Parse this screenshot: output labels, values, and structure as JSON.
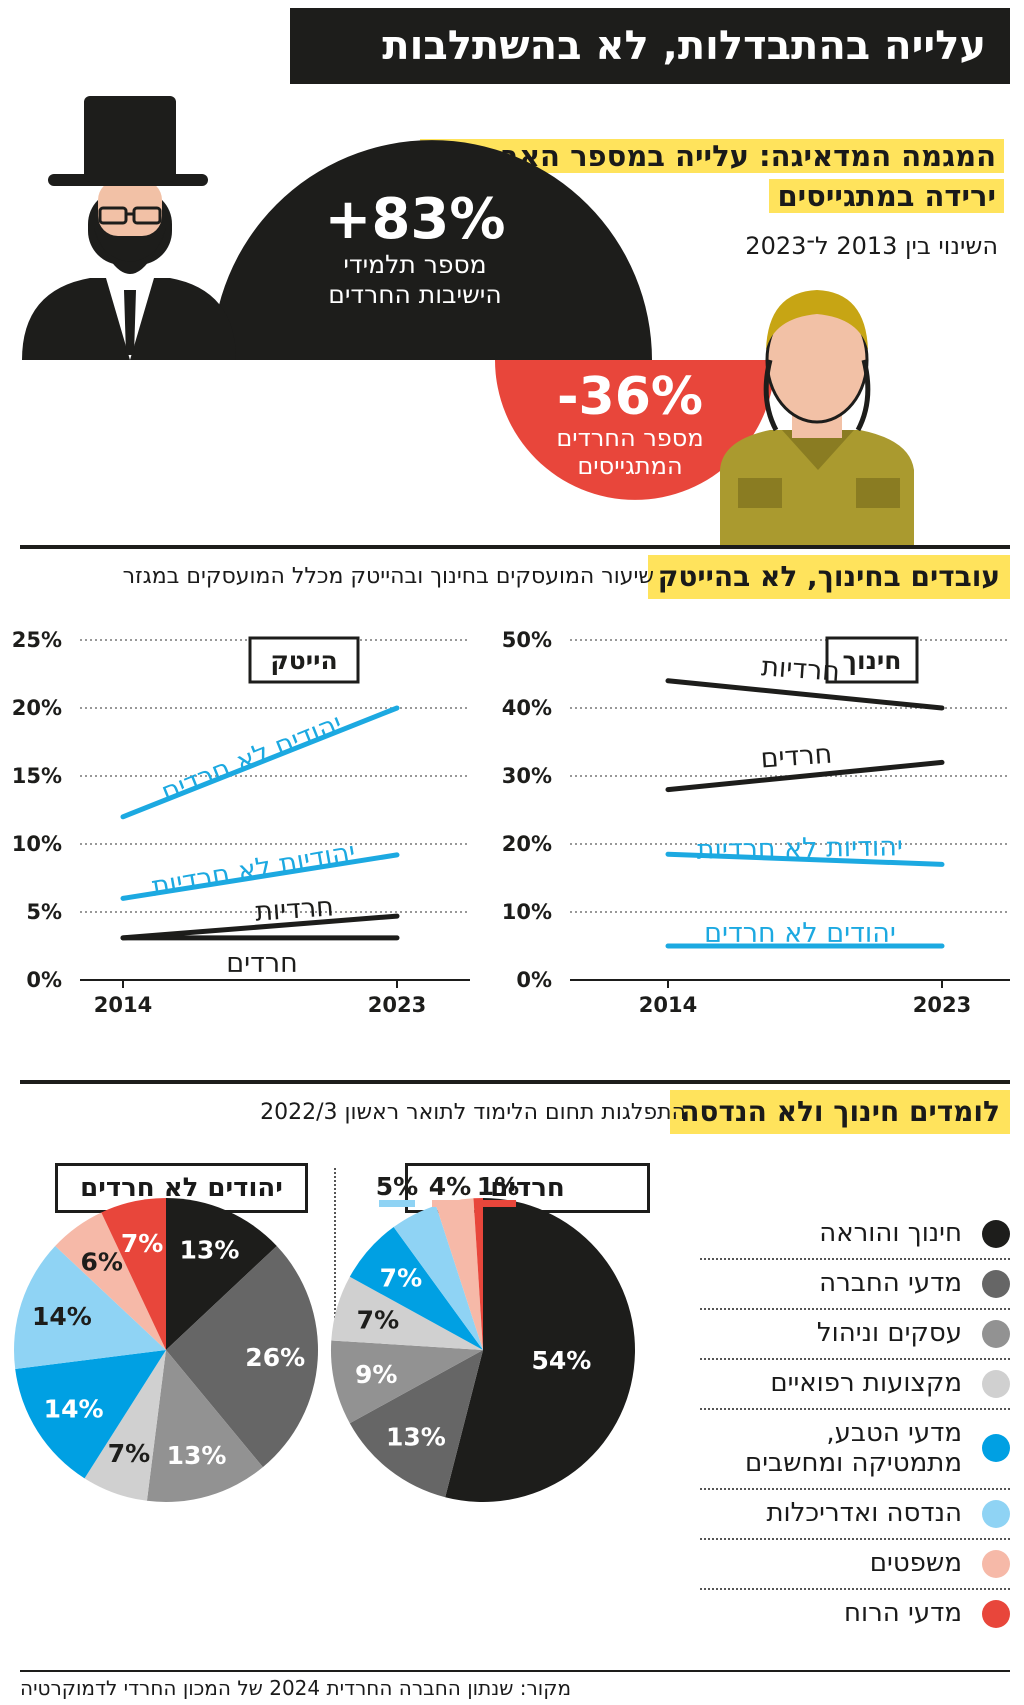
{
  "title": "עלייה בהתבדלות, לא בהשתלבות",
  "section1": {
    "heading_line1": "המגמה המדאיגה: עלייה במספר האברכים,",
    "heading_line2": "ירידה במתגייסים",
    "subtitle": "השינוי בין 2013 ל־2023",
    "stat1": {
      "value": "+83%",
      "label_line1": "מספר תלמידי",
      "label_line2": "הישיבות החרדים"
    },
    "stat2": {
      "value": "-36%",
      "label_line1": "מספר החרדים",
      "label_line2": "המתגייסים"
    }
  },
  "section2": {
    "heading": "עובדים בחינוך, לא בהייטק",
    "subtitle": "שיעור המועסקים בחינוך ובהייטק מכלל המועסקים במגזר"
  },
  "section3": {
    "heading": "לומדים חינוך ולא הנדסה",
    "subtitle": "התפלגות תחום הלימוד לתואר ראשון 2022/3"
  },
  "legend": [
    {
      "label": "חינוך והוראה",
      "color": "#1d1d1b"
    },
    {
      "label": "מדעי החברה",
      "color": "#666666"
    },
    {
      "label": "עסקים וניהול",
      "color": "#929292"
    },
    {
      "label": "מקצועות רפואיים",
      "color": "#d0d0d0"
    },
    {
      "label": "מדעי הטבע,",
      "label2": "מתמטיקה ומחשבים",
      "color": "#00a0e3"
    },
    {
      "label": "הנדסה ואדריכלות",
      "color": "#8fd3f4"
    },
    {
      "label": "משפטים",
      "color": "#f6b9a8"
    },
    {
      "label": "מדעי הרוח",
      "color": "#e8463b"
    }
  ],
  "source": "מקור: שנתון החברה החרדית 2024 של המכון החרדי לדמוקרטיה",
  "colors": {
    "black": "#1d1d1b",
    "blue": "#1ca9e1",
    "yellow": "#ffe35c",
    "red": "#e8463b"
  },
  "chart_data": [
    {
      "type": "line",
      "title": "חינוך",
      "x": [
        "2014",
        "2023"
      ],
      "ylim": [
        0,
        50
      ],
      "yticks": [
        "0%",
        "10%",
        "20%",
        "30%",
        "40%",
        "50%"
      ],
      "series": [
        {
          "name": "חרדיות",
          "values": [
            44,
            40
          ],
          "color": "#1d1d1b"
        },
        {
          "name": "חרדים",
          "values": [
            28,
            32
          ],
          "color": "#1d1d1b"
        },
        {
          "name": "יהודיות לא חרדיות",
          "values": [
            18.5,
            17
          ],
          "color": "#1ca9e1"
        },
        {
          "name": "יהודים לא חרדים",
          "values": [
            5,
            5
          ],
          "color": "#1ca9e1"
        }
      ]
    },
    {
      "type": "line",
      "title": "הייטק",
      "x": [
        "2014",
        "2023"
      ],
      "ylim": [
        0,
        25
      ],
      "yticks": [
        "0%",
        "5%",
        "10%",
        "15%",
        "20%",
        "25%"
      ],
      "series": [
        {
          "name": "יהודים לא חרדים",
          "values": [
            12,
            20
          ],
          "color": "#1ca9e1"
        },
        {
          "name": "יהודיות לא חרדיות",
          "values": [
            6,
            9.2
          ],
          "color": "#1ca9e1"
        },
        {
          "name": "חרדיות",
          "values": [
            3.1,
            4.7
          ],
          "color": "#1d1d1b"
        },
        {
          "name": "חרדים",
          "values": [
            3.1,
            3.1
          ],
          "color": "#1d1d1b"
        }
      ]
    },
    {
      "type": "pie",
      "title": "חרדים",
      "categories": [
        "חינוך והוראה",
        "מדעי החברה",
        "עסקים וניהול",
        "מקצועות רפואיים",
        "מדעי הטבע, מתמטיקה ומחשבים",
        "הנדסה ואדריכלות",
        "משפטים",
        "מדעי הרוח"
      ],
      "values": [
        54,
        13,
        9,
        7,
        7,
        5,
        4,
        1
      ],
      "labels": [
        "54%",
        "13%",
        "9%",
        "7%",
        "7%",
        "5%",
        "4%",
        "1%"
      ]
    },
    {
      "type": "pie",
      "title": "יהודים לא חרדים",
      "categories": [
        "חינוך והוראה",
        "מדעי החברה",
        "עסקים וניהול",
        "מקצועות רפואיים",
        "מדעי הטבע, מתמטיקה ומחשבים",
        "הנדסה ואדריכלות",
        "משפטים",
        "מדעי הרוח"
      ],
      "values": [
        13,
        26,
        13,
        7,
        14,
        14,
        6,
        7
      ],
      "labels": [
        "13%",
        "26%",
        "13%",
        "7%",
        "14%",
        "14%",
        "6%",
        "7%"
      ]
    }
  ]
}
